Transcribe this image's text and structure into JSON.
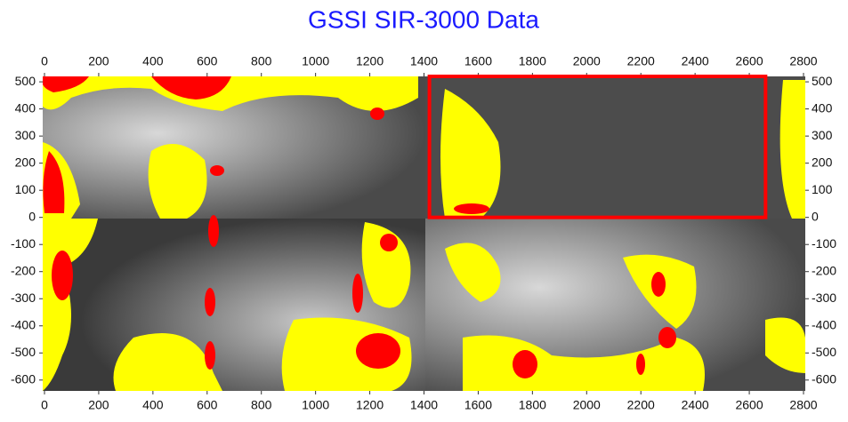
{
  "chart_data": {
    "type": "contour",
    "title": "GSSI SIR-3000 Data",
    "xlim": [
      0,
      2800
    ],
    "xticks": [
      0,
      200,
      400,
      600,
      800,
      1000,
      1200,
      1400,
      1600,
      1800,
      2000,
      2200,
      2400,
      2600,
      2800
    ],
    "ylim": [
      -640,
      520
    ],
    "yticks": [
      500,
      400,
      300,
      200,
      100,
      0,
      -100,
      -200,
      -300,
      -400,
      -500,
      -600
    ],
    "highlight": {
      "x": [
        1420,
        2660
      ],
      "y": [
        0,
        520
      ],
      "color": "#ff0000"
    },
    "title_color": "#1a1aff"
  }
}
